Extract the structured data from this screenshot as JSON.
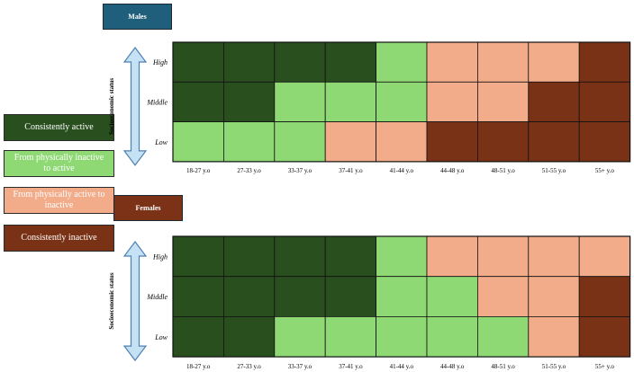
{
  "colors": {
    "consistently_active": "#2a4f1f",
    "inactive_to_active": "#8fd975",
    "active_to_inactive": "#f2ac8a",
    "consistently_inactive": "#7a3216",
    "males_label_bg": "#1f5f7c",
    "females_label_bg": "#7b3217",
    "arrow_fill": "#c5e2f5",
    "arrow_stroke": "#4e7fb0",
    "grid_line": "#111111"
  },
  "legend": [
    {
      "key": "consistently_active",
      "label": "Consistently active",
      "text_color": "#ffffff"
    },
    {
      "key": "inactive_to_active",
      "label": "From physically inactive to active",
      "text_color": "#ffffff"
    },
    {
      "key": "active_to_inactive",
      "label": "From physically active to inactive",
      "text_color": "#ffffff"
    },
    {
      "key": "consistently_inactive",
      "label": "Consistently inactive",
      "text_color": "#ffffff"
    }
  ],
  "chart_data": [
    {
      "type": "heatmap",
      "title": "Males",
      "ylabel": "Socioeconomic status",
      "rows": [
        "High",
        "Middle",
        "Low"
      ],
      "columns": [
        "18-27 y.o",
        "27-33 y.o",
        "33-37 y.o",
        "37-41 y.o",
        "41-44 y.o",
        "44-48 y.o",
        "48-51 y.o",
        "51-55 y.o",
        "55+ y.o"
      ],
      "values": [
        [
          "consistently_active",
          "consistently_active",
          "consistently_active",
          "consistently_active",
          "inactive_to_active",
          "active_to_inactive",
          "active_to_inactive",
          "active_to_inactive",
          "consistently_inactive"
        ],
        [
          "consistently_active",
          "consistently_active",
          "inactive_to_active",
          "inactive_to_active",
          "inactive_to_active",
          "active_to_inactive",
          "active_to_inactive",
          "consistently_inactive",
          "consistently_inactive"
        ],
        [
          "inactive_to_active",
          "inactive_to_active",
          "inactive_to_active",
          "active_to_inactive",
          "active_to_inactive",
          "consistently_inactive",
          "consistently_inactive",
          "consistently_inactive",
          "consistently_inactive"
        ]
      ]
    },
    {
      "type": "heatmap",
      "title": "Females",
      "ylabel": "Socioeconomic status",
      "rows": [
        "High",
        "Middle",
        "Low"
      ],
      "columns": [
        "18-27 y.o",
        "27-33 y.o",
        "33-37 y.o",
        "37-41 y.o",
        "41-44 y.o",
        "44-48 y.o",
        "48-51 y.o",
        "51-55 y.o",
        "55+ y.o"
      ],
      "values": [
        [
          "consistently_active",
          "consistently_active",
          "consistently_active",
          "consistently_active",
          "inactive_to_active",
          "active_to_inactive",
          "active_to_inactive",
          "active_to_inactive",
          "active_to_inactive"
        ],
        [
          "consistently_active",
          "consistently_active",
          "consistently_active",
          "consistently_active",
          "inactive_to_active",
          "inactive_to_active",
          "active_to_inactive",
          "active_to_inactive",
          "consistently_inactive"
        ],
        [
          "consistently_active",
          "consistently_active",
          "inactive_to_active",
          "inactive_to_active",
          "inactive_to_active",
          "inactive_to_active",
          "inactive_to_active",
          "active_to_inactive",
          "consistently_inactive"
        ]
      ]
    }
  ]
}
